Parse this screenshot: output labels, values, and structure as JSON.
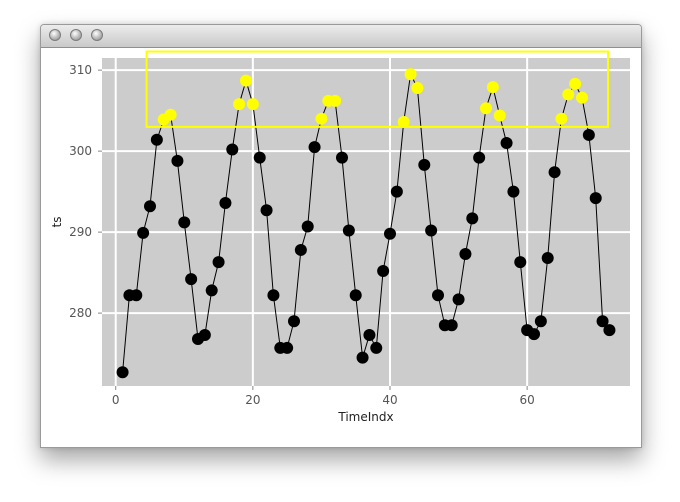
{
  "window": {
    "buttons": [
      "close",
      "minimize",
      "zoom"
    ]
  },
  "chart_data": {
    "type": "scatter",
    "xlabel": "TimeIndx",
    "ylabel": "ts",
    "xlim": [
      -2,
      75
    ],
    "ylim": [
      271,
      311.5
    ],
    "xticks": [
      0,
      20,
      40,
      60
    ],
    "yticks": [
      280,
      290,
      300,
      310
    ],
    "grid": true,
    "background": "#cccccc",
    "grid_color": "#ffffff",
    "point_color": "#000000",
    "highlight_color": "#ffff00",
    "selection_box": {
      "x": [
        4.5,
        71.8
      ],
      "y": [
        303,
        312.3
      ]
    },
    "series": [
      {
        "x": [
          1,
          2,
          3,
          4,
          5,
          6,
          7,
          8,
          9,
          10,
          11,
          12,
          13,
          14,
          15,
          16,
          17,
          18,
          19,
          20,
          21,
          22,
          23,
          24,
          25,
          26,
          27,
          28,
          29,
          30,
          31,
          32,
          33,
          34,
          35,
          36,
          37,
          38,
          39,
          40,
          41,
          42,
          43,
          44,
          45,
          46,
          47,
          48,
          49,
          50,
          51,
          52,
          53,
          54,
          55,
          56,
          57,
          58,
          59,
          60,
          61,
          62,
          63,
          64,
          65,
          66,
          67,
          68,
          69,
          70,
          71,
          72
        ],
        "values": [
          272.7,
          282.2,
          282.2,
          289.9,
          293.2,
          301.4,
          303.9,
          304.5,
          298.8,
          291.2,
          284.2,
          276.8,
          277.3,
          282.8,
          286.3,
          293.6,
          300.2,
          305.8,
          308.7,
          305.8,
          299.2,
          292.7,
          282.2,
          275.7,
          275.7,
          279.0,
          287.8,
          290.7,
          300.5,
          304.0,
          306.2,
          306.2,
          299.2,
          290.2,
          282.2,
          274.5,
          277.3,
          275.7,
          285.2,
          289.8,
          295.0,
          303.6,
          309.5,
          307.8,
          298.3,
          290.2,
          282.2,
          278.5,
          278.5,
          281.7,
          287.3,
          291.7,
          299.2,
          305.3,
          307.9,
          304.4,
          301.0,
          295.0,
          286.3,
          277.9,
          277.4,
          279.0,
          286.8,
          297.4,
          304.0,
          307.0,
          308.3,
          306.6,
          302.0,
          294.2,
          279.0,
          277.9
        ]
      }
    ]
  }
}
